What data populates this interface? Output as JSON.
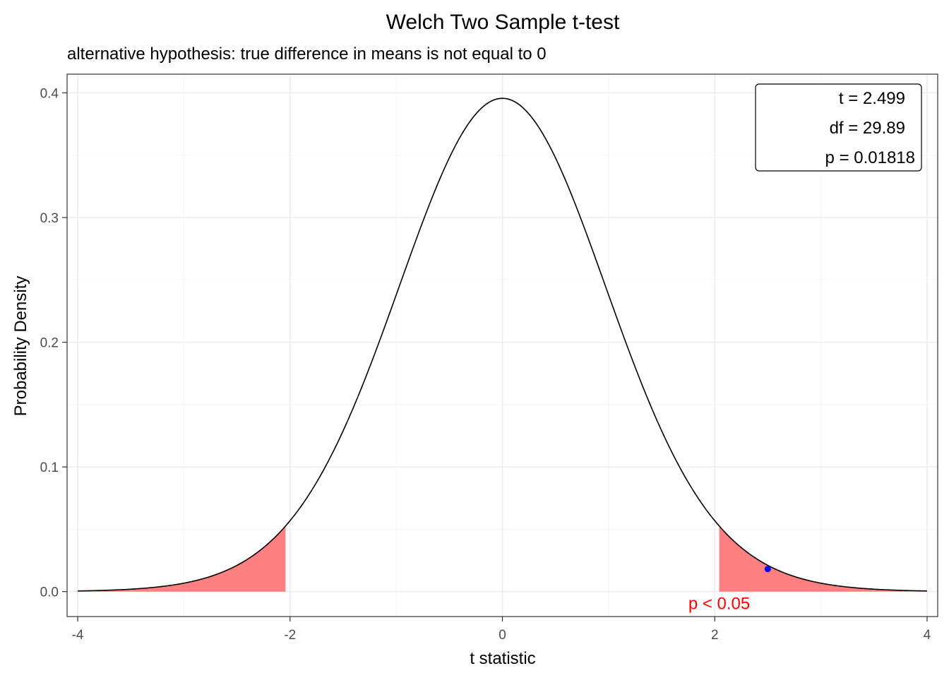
{
  "chart_data": {
    "type": "area",
    "title": "Welch Two Sample t-test",
    "subtitle": "alternative hypothesis: true difference in means is not equal to 0",
    "xlabel": "t statistic",
    "ylabel": "Probability Density",
    "xlim": [
      -4.1,
      4.1
    ],
    "ylim": [
      -0.02,
      0.415
    ],
    "x_ticks": [
      {
        "value": -4,
        "label": "-4"
      },
      {
        "value": -2,
        "label": "-2"
      },
      {
        "value": 0,
        "label": "0"
      },
      {
        "value": 2,
        "label": "2"
      },
      {
        "value": 4,
        "label": "4"
      }
    ],
    "y_ticks": [
      {
        "value": 0,
        "label": "0.0"
      },
      {
        "value": 0.1,
        "label": "0.1"
      },
      {
        "value": 0.2,
        "label": "0.2"
      },
      {
        "value": 0.3,
        "label": "0.3"
      },
      {
        "value": 0.4,
        "label": "0.4"
      }
    ],
    "grid": true,
    "distribution": {
      "name": "t",
      "df": 29.89,
      "range": [
        -4,
        4
      ]
    },
    "critical_value": 2.042,
    "shaded_regions": [
      {
        "from": -4,
        "to": -2.042
      },
      {
        "from": 2.042,
        "to": 4
      }
    ],
    "observed_point": {
      "x": 2.499,
      "y": 0.0181
    },
    "legend": {
      "position": "top-right",
      "entries": [
        "t = 2.499",
        "df = 29.89",
        "p = 0.01818"
      ]
    },
    "annotation": {
      "text": "p < 0.05",
      "x": 2.042,
      "y": -0.014
    },
    "colors": {
      "curve": "#000000",
      "shade": "#ff8080",
      "point": "#0000ff",
      "annotation": "#ff0000",
      "grid_major": "#ebebeb",
      "grid_minor": "#f5f5f5",
      "panel_border": "#333333",
      "tick_label": "#4d4d4d"
    }
  }
}
